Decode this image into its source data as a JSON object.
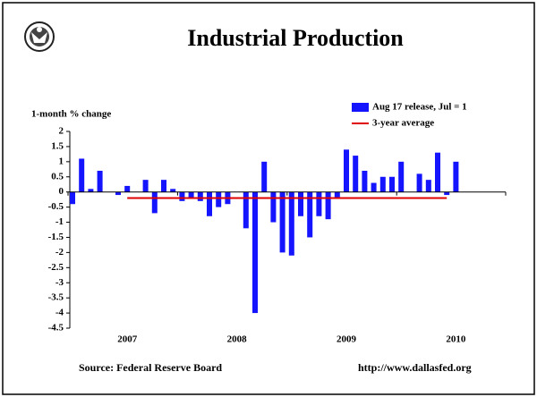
{
  "chart_data": {
    "type": "bar",
    "title": "Industrial Production",
    "y_axis_label": "1-month % change",
    "categories": [
      null,
      null,
      null,
      null,
      null,
      null,
      "2007",
      null,
      null,
      null,
      null,
      null,
      null,
      null,
      null,
      null,
      null,
      null,
      "2008",
      null,
      null,
      null,
      null,
      null,
      null,
      null,
      null,
      null,
      null,
      null,
      "2009",
      null,
      null,
      null,
      null,
      null,
      null,
      null,
      null,
      null,
      null,
      null,
      "2010"
    ],
    "series": [
      {
        "name": "Aug 17 release, Jul = 1",
        "color": "#1414ff",
        "values": [
          -0.4,
          1.1,
          0.1,
          0.7,
          0,
          -0.1,
          0.2,
          0,
          0.4,
          -0.7,
          0.4,
          0.1,
          -0.3,
          -0.2,
          -0.3,
          -0.8,
          -0.5,
          -0.4,
          0,
          -1.2,
          -4.0,
          1.0,
          -1.0,
          -2.0,
          -2.1,
          -0.8,
          -1.5,
          -0.8,
          -0.9,
          -0.2,
          1.4,
          1.2,
          0.7,
          0.3,
          0.5,
          0.5,
          1.0,
          0,
          0.6,
          0.4,
          1.3,
          -0.1,
          1.0
        ]
      },
      {
        "name": "3-year average",
        "color": "#e00000",
        "kind": "line",
        "values": [
          null,
          null,
          null,
          null,
          null,
          null,
          -0.2,
          -0.2,
          -0.2,
          -0.2,
          -0.2,
          -0.2,
          -0.2,
          -0.2,
          -0.2,
          -0.2,
          -0.2,
          -0.2,
          -0.2,
          -0.2,
          -0.2,
          -0.2,
          -0.2,
          -0.2,
          -0.2,
          -0.2,
          -0.2,
          -0.2,
          -0.2,
          -0.2,
          -0.2,
          -0.2,
          -0.2,
          -0.2,
          -0.2,
          -0.2,
          -0.2,
          -0.2,
          -0.2,
          -0.2,
          -0.2,
          -0.2,
          null
        ]
      }
    ],
    "ylim": [
      -4.5,
      2
    ],
    "yticks": [
      2,
      1.5,
      1,
      0.5,
      0,
      -0.5,
      -1,
      -1.5,
      -2,
      -2.5,
      -3,
      -3.5,
      -4,
      -4.5
    ],
    "source": "Source: Federal Reserve Board",
    "url": "http://www.dallasfed.org"
  }
}
